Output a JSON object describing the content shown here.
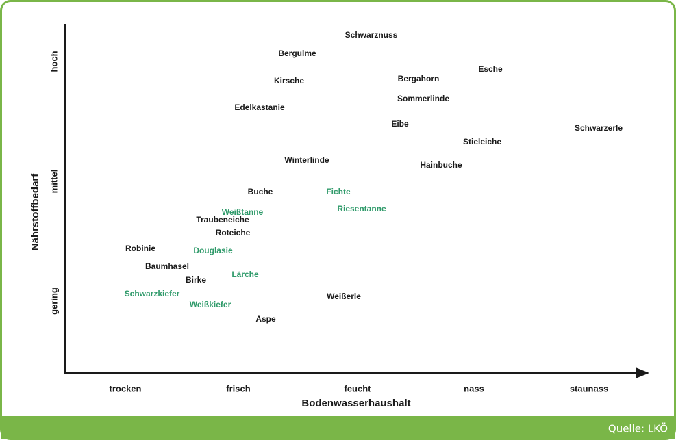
{
  "diagram": {
    "x_axis": {
      "title": "Bodenwasserhaushalt",
      "categories": [
        "trocken",
        "frisch",
        "feucht",
        "nass",
        "staunass"
      ]
    },
    "y_axis": {
      "title": "Nährstoffbedarf",
      "categories": [
        "gering",
        "mittel",
        "hoch"
      ]
    },
    "species": [
      {
        "label": "Schwarznuss",
        "color": "#1a1a1a"
      },
      {
        "label": "Bergulme",
        "color": "#1a1a1a"
      },
      {
        "label": "Esche",
        "color": "#1a1a1a"
      },
      {
        "label": "Bergahorn",
        "color": "#1a1a1a"
      },
      {
        "label": "Kirsche",
        "color": "#1a1a1a"
      },
      {
        "label": "Sommerlinde",
        "color": "#1a1a1a"
      },
      {
        "label": "Edelkastanie",
        "color": "#1a1a1a"
      },
      {
        "label": "Eibe",
        "color": "#1a1a1a"
      },
      {
        "label": "Schwarzerle",
        "color": "#1a1a1a"
      },
      {
        "label": "Stieleiche",
        "color": "#1a1a1a"
      },
      {
        "label": "Winterlinde",
        "color": "#1a1a1a"
      },
      {
        "label": "Hainbuche",
        "color": "#1a1a1a"
      },
      {
        "label": "Buche",
        "color": "#1a1a1a"
      },
      {
        "label": "Fichte",
        "color": "#2f9a6a"
      },
      {
        "label": "Riesentanne",
        "color": "#2f9a6a"
      },
      {
        "label": "Weißtanne",
        "color": "#2f9a6a"
      },
      {
        "label": "Traubeneiche",
        "color": "#1a1a1a"
      },
      {
        "label": "Roteiche",
        "color": "#1a1a1a"
      },
      {
        "label": "Robinie",
        "color": "#1a1a1a"
      },
      {
        "label": "Douglasie",
        "color": "#2f9a6a"
      },
      {
        "label": "Baumhasel",
        "color": "#1a1a1a"
      },
      {
        "label": "Lärche",
        "color": "#2f9a6a"
      },
      {
        "label": "Birke",
        "color": "#1a1a1a"
      },
      {
        "label": "Schwarzkiefer",
        "color": "#2f9a6a"
      },
      {
        "label": "Weißerle",
        "color": "#1a1a1a"
      },
      {
        "label": "Weißkiefer",
        "color": "#2f9a6a"
      },
      {
        "label": "Aspe",
        "color": "#1a1a1a"
      }
    ],
    "source": "Quelle: LKÖ"
  }
}
